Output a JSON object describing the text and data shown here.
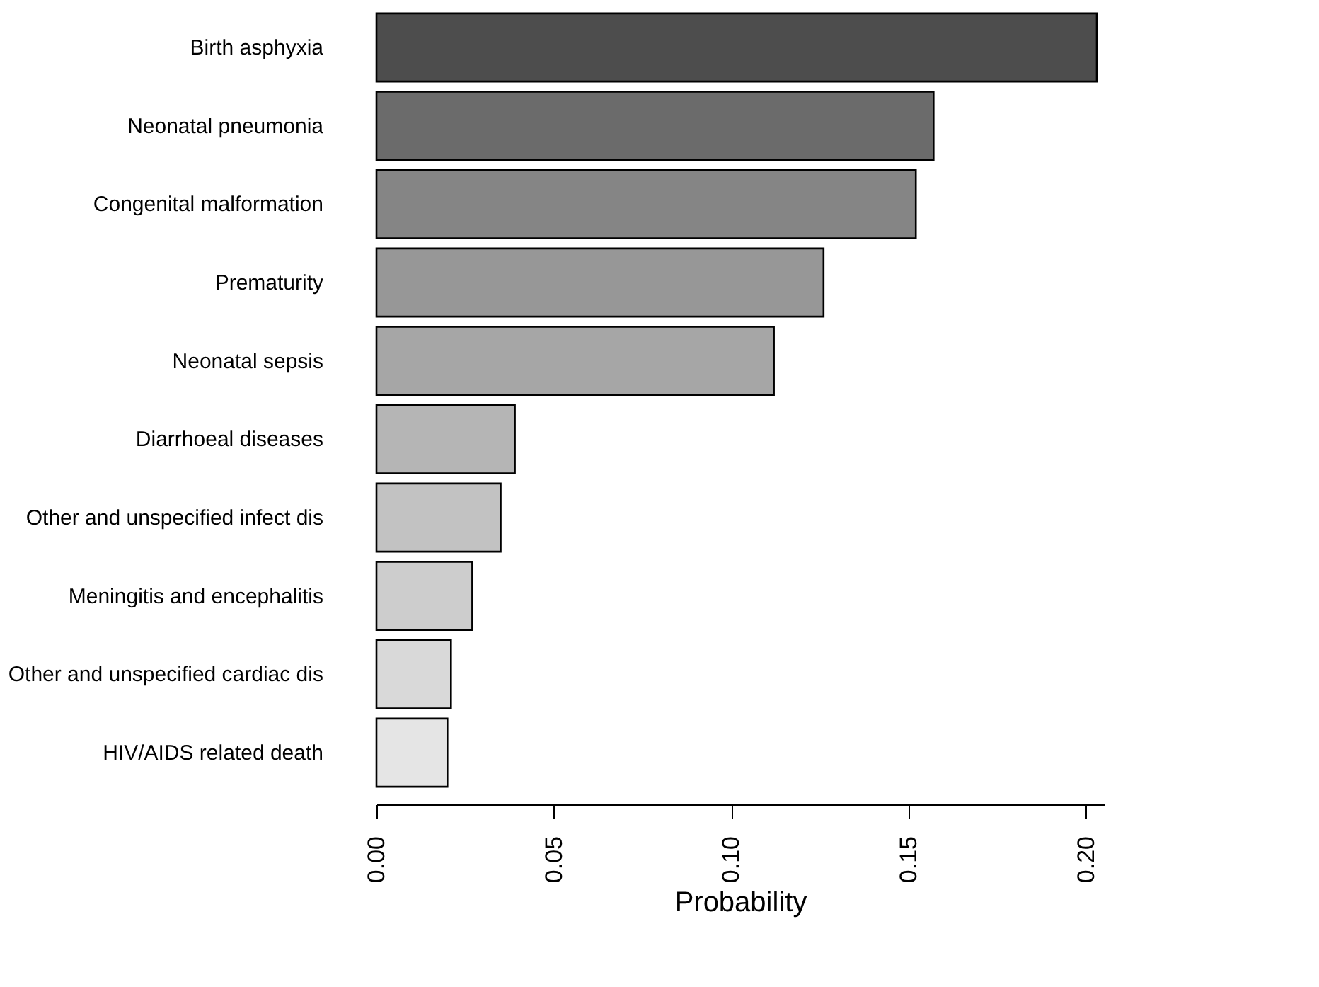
{
  "chart_data": {
    "type": "bar",
    "orientation": "horizontal",
    "xlabel": "Probability",
    "categories": [
      "Birth asphyxia",
      "Neonatal pneumonia",
      "Congenital malformation",
      "Prematurity",
      "Neonatal sepsis",
      "Diarrhoeal diseases",
      "Other and unspecified infect dis",
      "Meningitis and encephalitis",
      "Other and unspecified cardiac dis",
      "HIV/AIDS related death"
    ],
    "values": [
      0.203,
      0.157,
      0.152,
      0.126,
      0.112,
      0.039,
      0.035,
      0.027,
      0.021,
      0.02
    ],
    "colors": [
      "#4d4d4d",
      "#6b6b6b",
      "#858585",
      "#979797",
      "#a6a6a6",
      "#b5b5b5",
      "#c2c2c2",
      "#cdcdcd",
      "#d9d9d9",
      "#e5e5e5"
    ],
    "xlim": [
      0,
      0.205
    ],
    "xticks": [
      {
        "value": 0,
        "label": "0.00"
      },
      {
        "value": 0.05,
        "label": "0.05"
      },
      {
        "value": 0.1,
        "label": "0.10"
      },
      {
        "value": 0.15,
        "label": "0.15"
      },
      {
        "value": 0.2,
        "label": "0.20"
      }
    ],
    "grid": false
  }
}
